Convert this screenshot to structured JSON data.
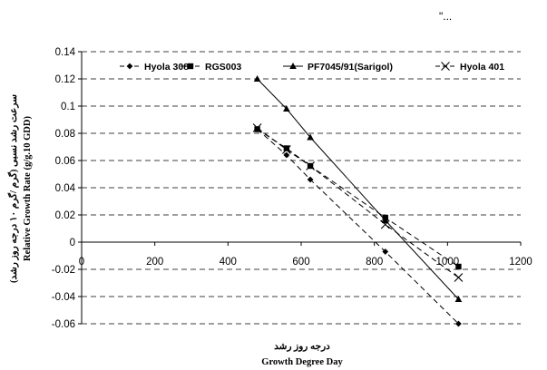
{
  "corner_mark": "\"...",
  "chart_data": {
    "type": "line",
    "xlabel_fa": "درجه روز رشد",
    "xlabel": "Growth Degree Day",
    "ylabel_fa": "سرعت رشد نسبی (گرم /گرم ۱۰ درجه روز رشد)",
    "ylabel": "Relative Growth Rate (g/g.10 GDD)",
    "xlim": [
      0,
      1200
    ],
    "ylim": [
      -0.06,
      0.14
    ],
    "x_ticks": [
      0,
      200,
      400,
      600,
      800,
      1000,
      1200
    ],
    "x_tick_labels": [
      "0",
      "200",
      "400",
      "600",
      "800",
      "1000",
      "1200"
    ],
    "y_ticks": [
      -0.06,
      -0.04,
      -0.02,
      0,
      0.02,
      0.04,
      0.06,
      0.08,
      0.1,
      0.12,
      0.14
    ],
    "y_tick_labels": [
      "-0.06",
      "-0.04",
      "-0.02",
      "0",
      "0.02",
      "0.04",
      "0.06",
      "0.08",
      "0.1",
      "0.12",
      "0.14"
    ],
    "grid": "horizontal dashed",
    "legend_position": "top",
    "series": [
      {
        "name": "Hyola 308",
        "marker": "diamond",
        "dash": "6,4",
        "x": [
          480,
          560,
          625,
          830,
          1030
        ],
        "y": [
          0.083,
          0.064,
          0.046,
          -0.007,
          -0.06
        ]
      },
      {
        "name": "RGS003",
        "marker": "square",
        "dash": "6,4",
        "x": [
          480,
          560,
          625,
          830,
          1030
        ],
        "y": [
          0.083,
          0.069,
          0.056,
          0.018,
          -0.018
        ]
      },
      {
        "name": "PF7045/91(Sarigol)",
        "marker": "triangle",
        "dash": "",
        "x": [
          480,
          560,
          625,
          830,
          1030
        ],
        "y": [
          0.12,
          0.098,
          0.077,
          0.016,
          -0.042
        ]
      },
      {
        "name": "Hyola 401",
        "marker": "x",
        "dash": "6,4",
        "x": [
          480,
          560,
          625,
          830,
          1030
        ],
        "y": [
          0.084,
          0.068,
          0.056,
          0.013,
          -0.026
        ]
      }
    ]
  }
}
